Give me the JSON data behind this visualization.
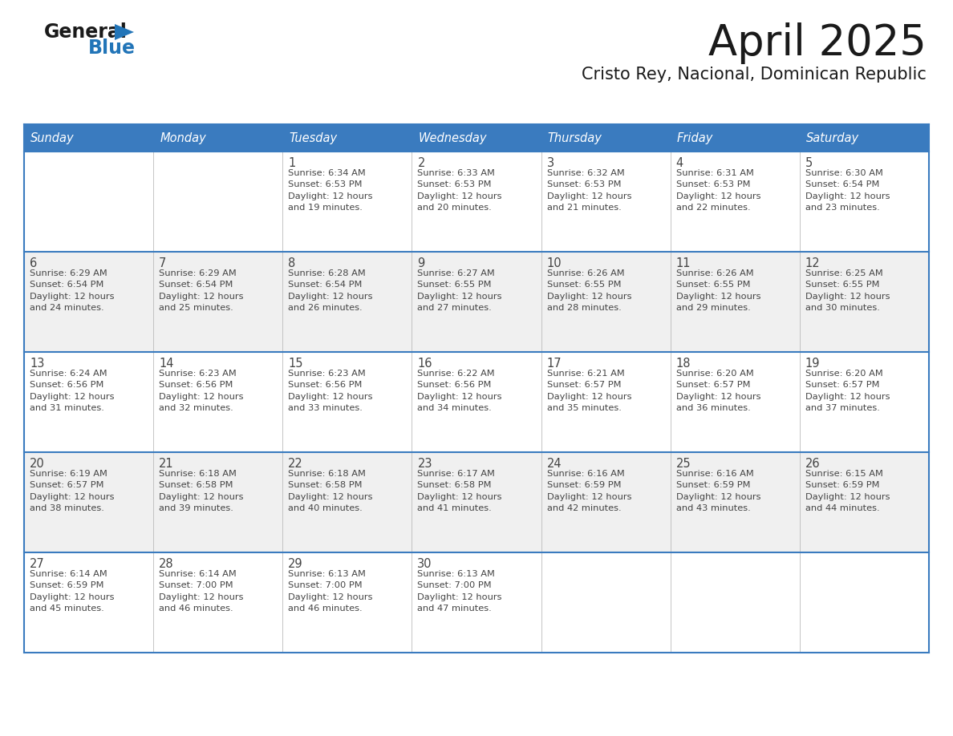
{
  "title": "April 2025",
  "subtitle": "Cristo Rey, Nacional, Dominican Republic",
  "header_bg_color": "#3a7bbf",
  "header_text_color": "#ffffff",
  "cell_bg_even": "#ffffff",
  "cell_bg_odd": "#f0f0f0",
  "border_color": "#3a7bbf",
  "text_color": "#444444",
  "days_of_week": [
    "Sunday",
    "Monday",
    "Tuesday",
    "Wednesday",
    "Thursday",
    "Friday",
    "Saturday"
  ],
  "calendar_data": [
    [
      {
        "day": "",
        "info": ""
      },
      {
        "day": "",
        "info": ""
      },
      {
        "day": "1",
        "info": "Sunrise: 6:34 AM\nSunset: 6:53 PM\nDaylight: 12 hours\nand 19 minutes."
      },
      {
        "day": "2",
        "info": "Sunrise: 6:33 AM\nSunset: 6:53 PM\nDaylight: 12 hours\nand 20 minutes."
      },
      {
        "day": "3",
        "info": "Sunrise: 6:32 AM\nSunset: 6:53 PM\nDaylight: 12 hours\nand 21 minutes."
      },
      {
        "day": "4",
        "info": "Sunrise: 6:31 AM\nSunset: 6:53 PM\nDaylight: 12 hours\nand 22 minutes."
      },
      {
        "day": "5",
        "info": "Sunrise: 6:30 AM\nSunset: 6:54 PM\nDaylight: 12 hours\nand 23 minutes."
      }
    ],
    [
      {
        "day": "6",
        "info": "Sunrise: 6:29 AM\nSunset: 6:54 PM\nDaylight: 12 hours\nand 24 minutes."
      },
      {
        "day": "7",
        "info": "Sunrise: 6:29 AM\nSunset: 6:54 PM\nDaylight: 12 hours\nand 25 minutes."
      },
      {
        "day": "8",
        "info": "Sunrise: 6:28 AM\nSunset: 6:54 PM\nDaylight: 12 hours\nand 26 minutes."
      },
      {
        "day": "9",
        "info": "Sunrise: 6:27 AM\nSunset: 6:55 PM\nDaylight: 12 hours\nand 27 minutes."
      },
      {
        "day": "10",
        "info": "Sunrise: 6:26 AM\nSunset: 6:55 PM\nDaylight: 12 hours\nand 28 minutes."
      },
      {
        "day": "11",
        "info": "Sunrise: 6:26 AM\nSunset: 6:55 PM\nDaylight: 12 hours\nand 29 minutes."
      },
      {
        "day": "12",
        "info": "Sunrise: 6:25 AM\nSunset: 6:55 PM\nDaylight: 12 hours\nand 30 minutes."
      }
    ],
    [
      {
        "day": "13",
        "info": "Sunrise: 6:24 AM\nSunset: 6:56 PM\nDaylight: 12 hours\nand 31 minutes."
      },
      {
        "day": "14",
        "info": "Sunrise: 6:23 AM\nSunset: 6:56 PM\nDaylight: 12 hours\nand 32 minutes."
      },
      {
        "day": "15",
        "info": "Sunrise: 6:23 AM\nSunset: 6:56 PM\nDaylight: 12 hours\nand 33 minutes."
      },
      {
        "day": "16",
        "info": "Sunrise: 6:22 AM\nSunset: 6:56 PM\nDaylight: 12 hours\nand 34 minutes."
      },
      {
        "day": "17",
        "info": "Sunrise: 6:21 AM\nSunset: 6:57 PM\nDaylight: 12 hours\nand 35 minutes."
      },
      {
        "day": "18",
        "info": "Sunrise: 6:20 AM\nSunset: 6:57 PM\nDaylight: 12 hours\nand 36 minutes."
      },
      {
        "day": "19",
        "info": "Sunrise: 6:20 AM\nSunset: 6:57 PM\nDaylight: 12 hours\nand 37 minutes."
      }
    ],
    [
      {
        "day": "20",
        "info": "Sunrise: 6:19 AM\nSunset: 6:57 PM\nDaylight: 12 hours\nand 38 minutes."
      },
      {
        "day": "21",
        "info": "Sunrise: 6:18 AM\nSunset: 6:58 PM\nDaylight: 12 hours\nand 39 minutes."
      },
      {
        "day": "22",
        "info": "Sunrise: 6:18 AM\nSunset: 6:58 PM\nDaylight: 12 hours\nand 40 minutes."
      },
      {
        "day": "23",
        "info": "Sunrise: 6:17 AM\nSunset: 6:58 PM\nDaylight: 12 hours\nand 41 minutes."
      },
      {
        "day": "24",
        "info": "Sunrise: 6:16 AM\nSunset: 6:59 PM\nDaylight: 12 hours\nand 42 minutes."
      },
      {
        "day": "25",
        "info": "Sunrise: 6:16 AM\nSunset: 6:59 PM\nDaylight: 12 hours\nand 43 minutes."
      },
      {
        "day": "26",
        "info": "Sunrise: 6:15 AM\nSunset: 6:59 PM\nDaylight: 12 hours\nand 44 minutes."
      }
    ],
    [
      {
        "day": "27",
        "info": "Sunrise: 6:14 AM\nSunset: 6:59 PM\nDaylight: 12 hours\nand 45 minutes."
      },
      {
        "day": "28",
        "info": "Sunrise: 6:14 AM\nSunset: 7:00 PM\nDaylight: 12 hours\nand 46 minutes."
      },
      {
        "day": "29",
        "info": "Sunrise: 6:13 AM\nSunset: 7:00 PM\nDaylight: 12 hours\nand 46 minutes."
      },
      {
        "day": "30",
        "info": "Sunrise: 6:13 AM\nSunset: 7:00 PM\nDaylight: 12 hours\nand 47 minutes."
      },
      {
        "day": "",
        "info": ""
      },
      {
        "day": "",
        "info": ""
      },
      {
        "day": "",
        "info": ""
      }
    ]
  ],
  "logo_color_black": "#1a1a1a",
  "logo_color_blue": "#2275b8",
  "logo_triangle_color": "#2275b8",
  "title_color": "#1a1a1a",
  "subtitle_color": "#1a1a1a"
}
